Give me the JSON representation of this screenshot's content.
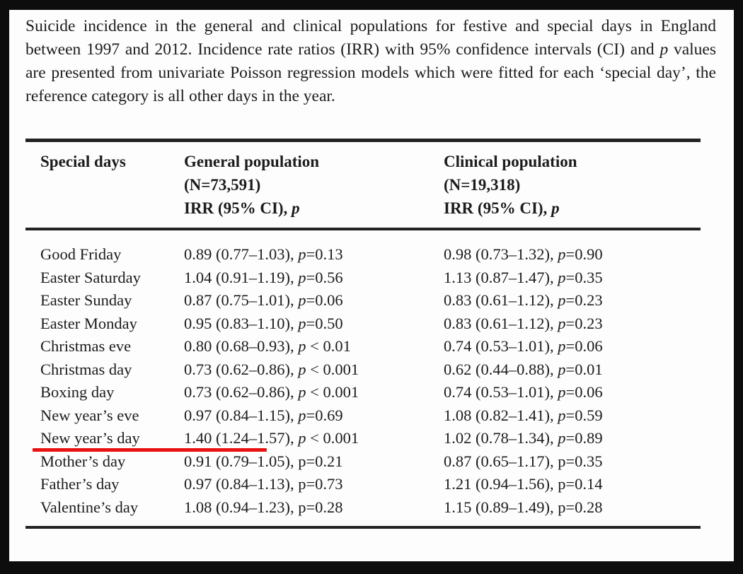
{
  "window": {
    "background_color": "#0d0d0d",
    "panel_background_color": "#fdfdfd",
    "text_color": "#1c1c1c",
    "rule_color": "#232323"
  },
  "caption": {
    "segments": [
      {
        "t": "Suicide incidence in the general and clinical populations for festive and special days in England between 1997 and 2012. Incidence rate ratios (IRR) with 95% confidence intervals (CI) and "
      },
      {
        "t": "p",
        "i": true
      },
      {
        "t": " values are presented from univariate Poisson regression models which were fitted for each ‘special day’, the reference category is all other days in the year."
      }
    ]
  },
  "table": {
    "col1_header": "Special days",
    "col2_header_lines": [
      [
        {
          "t": "General population"
        }
      ],
      [
        {
          "t": "(N=73,591)"
        }
      ],
      [
        {
          "t": "IRR (95% CI), "
        },
        {
          "t": "p",
          "i": true
        }
      ]
    ],
    "col3_header_lines": [
      [
        {
          "t": "Clinical population"
        }
      ],
      [
        {
          "t": "(N=19,318)"
        }
      ],
      [
        {
          "t": "IRR (95% CI), "
        },
        {
          "t": "p",
          "i": true
        }
      ]
    ],
    "rows": [
      {
        "day": "Good Friday",
        "general": [
          {
            "t": "0.89 (0.77–1.03), "
          },
          {
            "t": "p",
            "i": true
          },
          {
            "t": "=0.13"
          }
        ],
        "clinical": [
          {
            "t": "0.98 (0.73–1.32), "
          },
          {
            "t": "p",
            "i": true
          },
          {
            "t": "=0.90"
          }
        ]
      },
      {
        "day": "Easter Saturday",
        "general": [
          {
            "t": "1.04 (0.91–1.19), "
          },
          {
            "t": "p",
            "i": true
          },
          {
            "t": "=0.56"
          }
        ],
        "clinical": [
          {
            "t": "1.13 (0.87–1.47), "
          },
          {
            "t": "p",
            "i": true
          },
          {
            "t": "=0.35"
          }
        ]
      },
      {
        "day": "Easter Sunday",
        "general": [
          {
            "t": "0.87 (0.75–1.01), "
          },
          {
            "t": "p",
            "i": true
          },
          {
            "t": "=0.06"
          }
        ],
        "clinical": [
          {
            "t": "0.83 (0.61–1.12), "
          },
          {
            "t": "p",
            "i": true
          },
          {
            "t": "=0.23"
          }
        ]
      },
      {
        "day": "Easter Monday",
        "general": [
          {
            "t": "0.95 (0.83–1.10), "
          },
          {
            "t": "p",
            "i": true
          },
          {
            "t": "=0.50"
          }
        ],
        "clinical": [
          {
            "t": "0.83 (0.61–1.12), "
          },
          {
            "t": "p",
            "i": true
          },
          {
            "t": "=0.23"
          }
        ]
      },
      {
        "day": "Christmas eve",
        "general": [
          {
            "t": "0.80 (0.68–0.93), "
          },
          {
            "t": "p",
            "i": true
          },
          {
            "t": " < 0.01"
          }
        ],
        "clinical": [
          {
            "t": "0.74 (0.53–1.01), "
          },
          {
            "t": "p",
            "i": true
          },
          {
            "t": "=0.06"
          }
        ]
      },
      {
        "day": "Christmas day",
        "general": [
          {
            "t": "0.73 (0.62–0.86), "
          },
          {
            "t": "p",
            "i": true
          },
          {
            "t": " < 0.001"
          }
        ],
        "clinical": [
          {
            "t": "0.62 (0.44–0.88), "
          },
          {
            "t": "p",
            "i": true
          },
          {
            "t": "=0.01"
          }
        ]
      },
      {
        "day": "Boxing day",
        "general": [
          {
            "t": "0.73 (0.62–0.86), "
          },
          {
            "t": "p",
            "i": true
          },
          {
            "t": " < 0.001"
          }
        ],
        "clinical": [
          {
            "t": "0.74 (0.53–1.01), "
          },
          {
            "t": "p",
            "i": true
          },
          {
            "t": "=0.06"
          }
        ]
      },
      {
        "day": "New year’s eve",
        "general": [
          {
            "t": "0.97 (0.84–1.15), "
          },
          {
            "t": "p",
            "i": true
          },
          {
            "t": "=0.69"
          }
        ],
        "clinical": [
          {
            "t": "1.08 (0.82–1.41), "
          },
          {
            "t": "p",
            "i": true
          },
          {
            "t": "=0.59"
          }
        ]
      },
      {
        "day": "New year’s day",
        "general": [
          {
            "t": "1.40 (1.24–1.57), "
          },
          {
            "t": "p",
            "i": true
          },
          {
            "t": " < 0.001"
          }
        ],
        "clinical": [
          {
            "t": "1.02 (0.78–1.34), "
          },
          {
            "t": "p",
            "i": true
          },
          {
            "t": "=0.89"
          }
        ]
      },
      {
        "day": "Mother’s day",
        "general": [
          {
            "t": "0.91 (0.79–1.05), p=0.21"
          }
        ],
        "clinical": [
          {
            "t": "0.87 (0.65–1.17), p=0.35"
          }
        ]
      },
      {
        "day": "Father’s day",
        "general": [
          {
            "t": "0.97 (0.84–1.13), p=0.73"
          }
        ],
        "clinical": [
          {
            "t": "1.21 (0.94–1.56), p=0.14"
          }
        ]
      },
      {
        "day": "Valentine’s day",
        "general": [
          {
            "t": "1.08 (0.94–1.23), p=0.28"
          }
        ],
        "clinical": [
          {
            "t": "1.15 (0.89–1.49), p=0.28"
          }
        ]
      }
    ]
  },
  "annotation": {
    "type": "red-underline",
    "color": "#e81212",
    "target_row": "New year’s day"
  }
}
